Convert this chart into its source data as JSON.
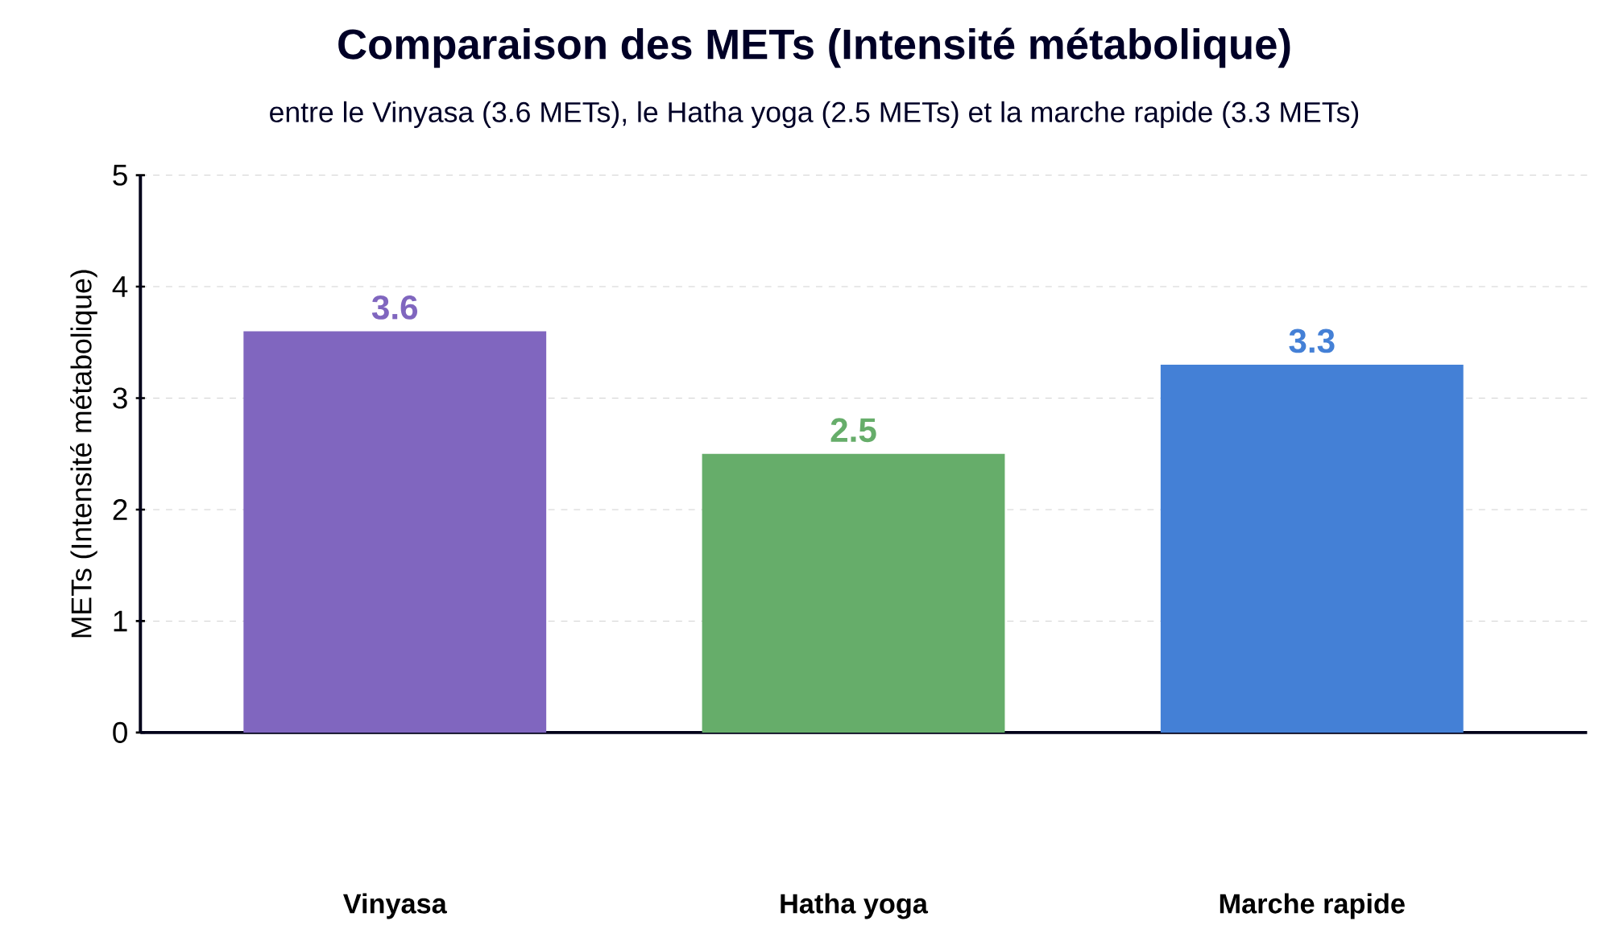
{
  "chart_data": {
    "type": "bar",
    "title": "Comparaison des METs (Intensité métabolique)",
    "subtitle": "entre le Vinyasa (3.6 METs), le Hatha yoga (2.5 METs) et la marche rapide (3.3 METs)",
    "ylabel": "METs (Intensité métabolique)",
    "categories": [
      "Vinyasa",
      "Hatha yoga",
      "Marche rapide"
    ],
    "values": [
      3.6,
      2.5,
      3.3
    ],
    "colors": [
      "#8066bf",
      "#66ad6a",
      "#4480d6"
    ],
    "ylim": [
      0,
      5
    ],
    "yticks": [
      0,
      1,
      2,
      3,
      4,
      5
    ],
    "grid": "y",
    "data_labels": true
  }
}
